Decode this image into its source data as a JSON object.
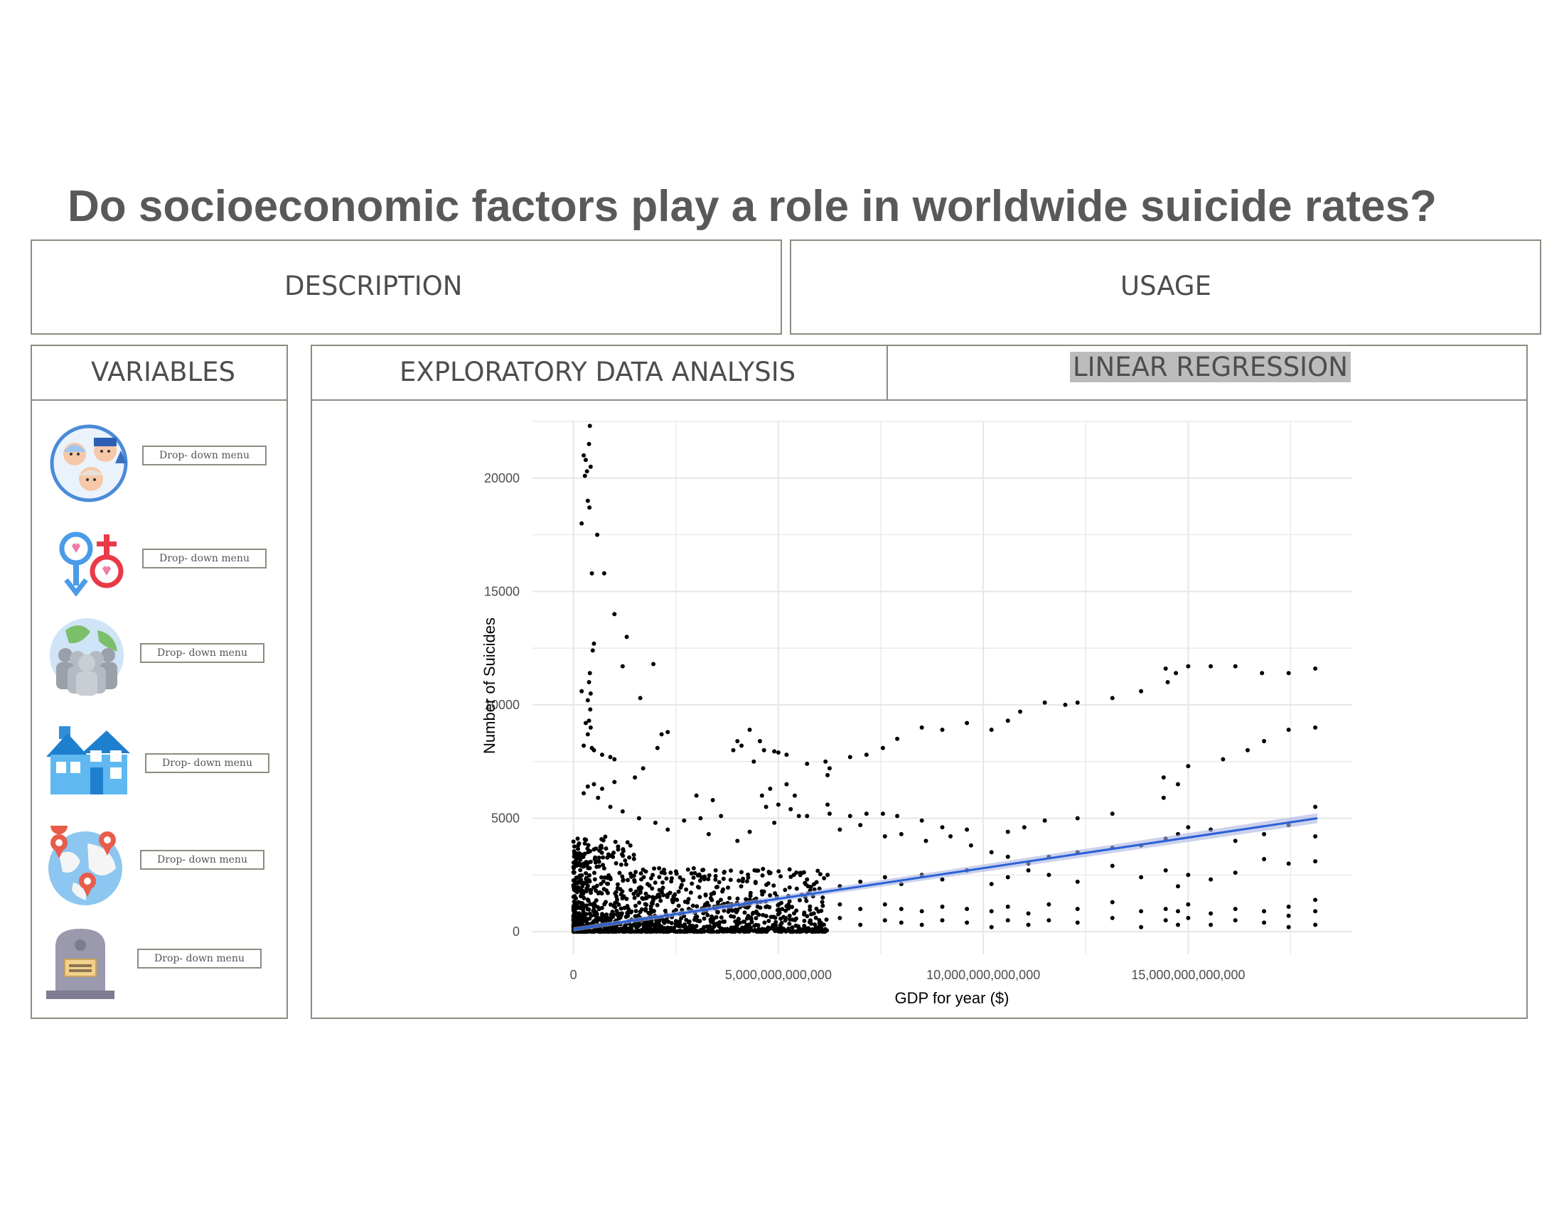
{
  "title": "Do socioeconomic factors play a role in worldwide suicide rates?",
  "tabs": {
    "description": "DESCRIPTION",
    "usage": "USAGE",
    "variables": "VARIABLES",
    "eda": "EXPLORATORY DATA ANALYSIS",
    "linear_regression": "LINEAR REGRESSION"
  },
  "variables": [
    {
      "icon": "age-groups-icon",
      "dropdown": "Drop- down menu"
    },
    {
      "icon": "gender-symbols-icon",
      "dropdown": "Drop- down menu"
    },
    {
      "icon": "population-globe-icon",
      "dropdown": "Drop- down menu"
    },
    {
      "icon": "house-icon",
      "dropdown": "Drop- down menu"
    },
    {
      "icon": "world-map-pins-icon",
      "dropdown": "Drop- down menu"
    },
    {
      "icon": "gravestone-icon",
      "dropdown": "Drop- down menu"
    }
  ],
  "colors": {
    "regression_line": "#2b60d8",
    "points": "#000000",
    "grid": "#e6e6e6"
  },
  "chart_data": {
    "type": "scatter",
    "xlabel": "GDP for year ($)",
    "ylabel": "Number of Suicides",
    "xlim": [
      -1000000000000,
      19000000000000
    ],
    "ylim": [
      -1000,
      22500
    ],
    "x_ticks": [
      0,
      5000000000000,
      10000000000000,
      15000000000000
    ],
    "x_tick_labels": [
      "0",
      "5,000,000,000,000",
      "10,000,000,000,000",
      "15,000,000,000,000"
    ],
    "y_ticks": [
      0,
      5000,
      10000,
      15000,
      20000
    ],
    "y_tick_labels": [
      "0",
      "5000",
      "10000",
      "15000",
      "20000"
    ],
    "grid": true,
    "regression": {
      "x": [
        0,
        18150000000000
      ],
      "y": [
        100,
        5000
      ]
    },
    "points": [
      [
        400000000000,
        22300
      ],
      [
        380000000000,
        21500
      ],
      [
        250000000000,
        21000
      ],
      [
        300000000000,
        20800
      ],
      [
        330000000000,
        20300
      ],
      [
        280000000000,
        20100
      ],
      [
        420000000000,
        20500
      ],
      [
        350000000000,
        19000
      ],
      [
        390000000000,
        18700
      ],
      [
        200000000000,
        18000
      ],
      [
        580000000000,
        17500
      ],
      [
        450000000000,
        15800
      ],
      [
        750000000000,
        15800
      ],
      [
        1000000000000,
        14000
      ],
      [
        1300000000000,
        13000
      ],
      [
        500000000000,
        12700
      ],
      [
        470000000000,
        12400
      ],
      [
        1200000000000,
        11700
      ],
      [
        1950000000000,
        11800
      ],
      [
        1630000000000,
        10300
      ],
      [
        400000000000,
        11400
      ],
      [
        380000000000,
        11000
      ],
      [
        200000000000,
        10600
      ],
      [
        420000000000,
        10500
      ],
      [
        350000000000,
        10200
      ],
      [
        410000000000,
        9800
      ],
      [
        380000000000,
        9300
      ],
      [
        300000000000,
        9200
      ],
      [
        420000000000,
        9000
      ],
      [
        2300000000000,
        8800
      ],
      [
        2150000000000,
        8700
      ],
      [
        2050000000000,
        8100
      ],
      [
        350000000000,
        8700
      ],
      [
        250000000000,
        8200
      ],
      [
        500000000000,
        8000
      ],
      [
        450000000000,
        8100
      ],
      [
        700000000000,
        7800
      ],
      [
        900000000000,
        7700
      ],
      [
        1000000000000,
        7600
      ],
      [
        1700000000000,
        7200
      ],
      [
        4000000000000,
        8400
      ],
      [
        4100000000000,
        8200
      ],
      [
        3900000000000,
        8000
      ],
      [
        4300000000000,
        8900
      ],
      [
        4550000000000,
        8400
      ],
      [
        4650000000000,
        8000
      ],
      [
        4900000000000,
        7950
      ],
      [
        5000000000000,
        7900
      ],
      [
        5200000000000,
        7800
      ],
      [
        4400000000000,
        7500
      ],
      [
        5700000000000,
        7400
      ],
      [
        6150000000000,
        7500
      ],
      [
        6250000000000,
        7200
      ],
      [
        6200000000000,
        6900
      ],
      [
        6750000000000,
        7700
      ],
      [
        7150000000000,
        7800
      ],
      [
        7550000000000,
        8100
      ],
      [
        7900000000000,
        8500
      ],
      [
        8500000000000,
        9000
      ],
      [
        9000000000000,
        8900
      ],
      [
        9600000000000,
        9200
      ],
      [
        10200000000000,
        8900
      ],
      [
        10600000000000,
        9300
      ],
      [
        10900000000000,
        9700
      ],
      [
        11500000000000,
        10100
      ],
      [
        12000000000000,
        10000
      ],
      [
        12300000000000,
        10100
      ],
      [
        13150000000000,
        10300
      ],
      [
        13850000000000,
        10600
      ],
      [
        14450000000000,
        11600
      ],
      [
        14500000000000,
        11000
      ],
      [
        14700000000000,
        11400
      ],
      [
        15000000000000,
        11700
      ],
      [
        15550000000000,
        11700
      ],
      [
        16150000000000,
        11700
      ],
      [
        16800000000000,
        11400
      ],
      [
        17450000000000,
        11400
      ],
      [
        18100000000000,
        11600
      ],
      [
        18100000000000,
        9000
      ],
      [
        17450000000000,
        8900
      ],
      [
        16850000000000,
        8400
      ],
      [
        16450000000000,
        8000
      ],
      [
        15850000000000,
        7600
      ],
      [
        15000000000000,
        7300
      ],
      [
        14400000000000,
        6800
      ],
      [
        14750000000000,
        6500
      ],
      [
        14400000000000,
        5900
      ],
      [
        13150000000000,
        5200
      ],
      [
        12300000000000,
        5000
      ],
      [
        11500000000000,
        4900
      ],
      [
        11000000000000,
        4600
      ],
      [
        10600000000000,
        4400
      ],
      [
        9600000000000,
        4500
      ],
      [
        9000000000000,
        4600
      ],
      [
        8500000000000,
        4900
      ],
      [
        7900000000000,
        5100
      ],
      [
        7550000000000,
        5200
      ],
      [
        7150000000000,
        5200
      ],
      [
        6750000000000,
        5100
      ],
      [
        6250000000000,
        5200
      ],
      [
        5700000000000,
        5100
      ],
      [
        5300000000000,
        5400
      ],
      [
        5000000000000,
        5600
      ],
      [
        4700000000000,
        5500
      ],
      [
        4600000000000,
        6000
      ],
      [
        4800000000000,
        6300
      ],
      [
        5200000000000,
        6500
      ],
      [
        5400000000000,
        6000
      ],
      [
        1500000000000,
        6800
      ],
      [
        1000000000000,
        6600
      ],
      [
        700000000000,
        6300
      ],
      [
        500000000000,
        6500
      ],
      [
        350000000000,
        6400
      ],
      [
        250000000000,
        6100
      ],
      [
        600000000000,
        5900
      ],
      [
        900000000000,
        5500
      ],
      [
        1200000000000,
        5300
      ],
      [
        1600000000000,
        5000
      ],
      [
        2000000000000,
        4800
      ],
      [
        2300000000000,
        4500
      ],
      [
        3000000000000,
        6000
      ],
      [
        3400000000000,
        5800
      ],
      [
        3100000000000,
        5000
      ],
      [
        2700000000000,
        4900
      ],
      [
        3300000000000,
        4300
      ],
      [
        3600000000000,
        5100
      ],
      [
        4000000000000,
        4000
      ],
      [
        4300000000000,
        4400
      ],
      [
        4900000000000,
        4800
      ],
      [
        5500000000000,
        5100
      ],
      [
        6200000000000,
        5600
      ],
      [
        6500000000000,
        4500
      ],
      [
        7000000000000,
        4700
      ],
      [
        7600000000000,
        4200
      ],
      [
        8000000000000,
        4300
      ],
      [
        8600000000000,
        4000
      ],
      [
        9200000000000,
        4200
      ],
      [
        9700000000000,
        3800
      ],
      [
        10200000000000,
        3500
      ],
      [
        10600000000000,
        3300
      ],
      [
        11100000000000,
        3000
      ],
      [
        11600000000000,
        3300
      ],
      [
        12300000000000,
        3500
      ],
      [
        13150000000000,
        3700
      ],
      [
        13850000000000,
        3800
      ],
      [
        14450000000000,
        4100
      ],
      [
        14750000000000,
        4300
      ],
      [
        15000000000000,
        4600
      ],
      [
        15550000000000,
        4500
      ],
      [
        16150000000000,
        4000
      ],
      [
        16850000000000,
        4300
      ],
      [
        17450000000000,
        4700
      ],
      [
        18100000000000,
        5500
      ],
      [
        18100000000000,
        4200
      ],
      [
        18100000000000,
        3100
      ],
      [
        17450000000000,
        3000
      ],
      [
        16850000000000,
        3200
      ],
      [
        16150000000000,
        2600
      ],
      [
        15550000000000,
        2300
      ],
      [
        15000000000000,
        2500
      ],
      [
        14750000000000,
        2000
      ],
      [
        14450000000000,
        2700
      ],
      [
        13850000000000,
        2400
      ],
      [
        13150000000000,
        2900
      ],
      [
        12300000000000,
        2200
      ],
      [
        11600000000000,
        2500
      ],
      [
        11100000000000,
        2700
      ],
      [
        10600000000000,
        2400
      ],
      [
        10200000000000,
        2100
      ],
      [
        9600000000000,
        2700
      ],
      [
        9000000000000,
        2300
      ],
      [
        8500000000000,
        2500
      ],
      [
        8000000000000,
        2100
      ],
      [
        7600000000000,
        2400
      ],
      [
        7000000000000,
        2200
      ],
      [
        6500000000000,
        2000
      ],
      [
        6200000000000,
        2500
      ],
      [
        5700000000000,
        2300
      ],
      [
        18100000000000,
        1400
      ],
      [
        18100000000000,
        900
      ],
      [
        18100000000000,
        300
      ],
      [
        17450000000000,
        1100
      ],
      [
        17450000000000,
        700
      ],
      [
        17450000000000,
        200
      ],
      [
        16850000000000,
        900
      ],
      [
        16850000000000,
        400
      ],
      [
        16150000000000,
        1000
      ],
      [
        16150000000000,
        500
      ],
      [
        15550000000000,
        800
      ],
      [
        15550000000000,
        300
      ],
      [
        15000000000000,
        1200
      ],
      [
        15000000000000,
        600
      ],
      [
        14750000000000,
        900
      ],
      [
        14750000000000,
        300
      ],
      [
        14450000000000,
        1000
      ],
      [
        14450000000000,
        500
      ],
      [
        13850000000000,
        900
      ],
      [
        13850000000000,
        200
      ],
      [
        13150000000000,
        1300
      ],
      [
        13150000000000,
        600
      ],
      [
        12300000000000,
        1000
      ],
      [
        12300000000000,
        400
      ],
      [
        11600000000000,
        1200
      ],
      [
        11600000000000,
        500
      ],
      [
        11100000000000,
        800
      ],
      [
        11100000000000,
        300
      ],
      [
        10600000000000,
        1100
      ],
      [
        10600000000000,
        500
      ],
      [
        10200000000000,
        900
      ],
      [
        10200000000000,
        200
      ],
      [
        9600000000000,
        1000
      ],
      [
        9600000000000,
        400
      ],
      [
        9000000000000,
        1100
      ],
      [
        9000000000000,
        500
      ],
      [
        8500000000000,
        900
      ],
      [
        8500000000000,
        300
      ],
      [
        8000000000000,
        1000
      ],
      [
        8000000000000,
        400
      ],
      [
        7600000000000,
        1200
      ],
      [
        7600000000000,
        500
      ],
      [
        7000000000000,
        1000
      ],
      [
        7000000000000,
        300
      ],
      [
        6500000000000,
        1200
      ],
      [
        6500000000000,
        600
      ]
    ]
  }
}
